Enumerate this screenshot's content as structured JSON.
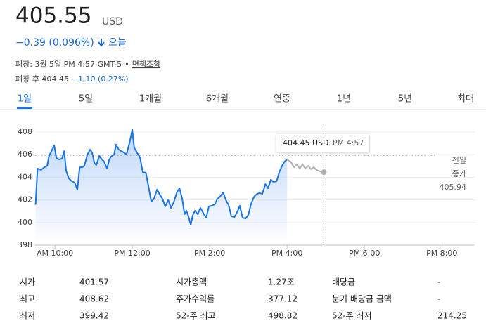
{
  "header": {
    "price": "405.55",
    "currency": "USD",
    "change": "−0.39 (0.096%)",
    "period": "오늘",
    "close_info": "폐장: 3월 5일 PM 4:57 GMT-5",
    "separator": "•",
    "disclaimer": "면책조항",
    "after_hours_label": "폐장 후 404.45",
    "after_hours_change": "−1.10 (0.27%)"
  },
  "tabs": {
    "items": [
      "1일",
      "5일",
      "1개월",
      "6개월",
      "연중",
      "1년",
      "5년",
      "최대"
    ],
    "selected": 0
  },
  "chart_data": {
    "type": "line",
    "xlim": [
      9.49,
      20.85
    ],
    "ylim": [
      398,
      408
    ],
    "xticks": [
      {
        "value": 10,
        "label": "AM 10:00"
      },
      {
        "value": 12,
        "label": "PM 12:00"
      },
      {
        "value": 14,
        "label": "PM 2:00"
      },
      {
        "value": 16,
        "label": "PM 4:00"
      },
      {
        "value": 18,
        "label": "PM 6:00"
      },
      {
        "value": 20,
        "label": "PM 8:00"
      }
    ],
    "yticks": [
      398,
      400,
      402,
      404,
      406,
      408
    ],
    "grid": true,
    "series": [
      {
        "color": "#1a73e8",
        "area": true,
        "x": [
          9.5,
          9.55,
          9.64,
          9.73,
          9.8,
          9.85,
          9.93,
          9.98,
          10.04,
          10.11,
          10.18,
          10.24,
          10.29,
          10.36,
          10.44,
          10.51,
          10.58,
          10.64,
          10.71,
          10.76,
          10.84,
          10.91,
          10.96,
          11.02,
          11.07,
          11.15,
          11.2,
          11.27,
          11.35,
          11.4,
          11.45,
          11.53,
          11.58,
          11.65,
          11.71,
          11.78,
          11.85,
          11.93,
          12.0,
          12.05,
          12.13,
          12.2,
          12.27,
          12.35,
          12.42,
          12.49,
          12.56,
          12.64,
          12.71,
          12.78,
          12.85,
          12.93,
          13.0,
          13.07,
          13.15,
          13.22,
          13.29,
          13.35,
          13.4,
          13.45,
          13.51,
          13.56,
          13.62,
          13.69,
          13.76,
          13.84,
          13.91,
          13.98,
          14.05,
          14.13,
          14.2,
          14.27,
          14.35,
          14.42,
          14.49,
          14.56,
          14.64,
          14.71,
          14.78,
          14.85,
          14.93,
          15.0,
          15.07,
          15.15,
          15.22,
          15.29,
          15.36,
          15.44,
          15.51,
          15.58,
          15.65,
          15.73,
          15.8,
          15.87,
          15.95,
          16.0
        ],
        "values": [
          401.57,
          404.77,
          404.65,
          404.89,
          405.02,
          405.89,
          406.45,
          406.82,
          405.7,
          405.58,
          405.64,
          406.32,
          404.58,
          403.9,
          403.65,
          403.53,
          402.91,
          404.89,
          404.89,
          405.02,
          406.01,
          406.45,
          406.2,
          405.27,
          405.08,
          405.89,
          405.64,
          405.39,
          404.77,
          405.52,
          405.83,
          406.01,
          406.88,
          406.45,
          406.32,
          406.2,
          406.01,
          407.07,
          408.19,
          406.63,
          406.14,
          405.76,
          404.46,
          404.4,
          403.16,
          401.85,
          402.1,
          402.91,
          402.47,
          402.1,
          401.42,
          401.98,
          401.29,
          401.79,
          402.66,
          403.03,
          402.1,
          400.73,
          401.04,
          400.55,
          399.8,
          400.61,
          401.04,
          400.73,
          401.29,
          400.8,
          400.42,
          401.42,
          401.48,
          401.6,
          402.1,
          402.29,
          402.66,
          401.98,
          401.54,
          400.55,
          400.48,
          400.92,
          401.48,
          400.42,
          400.36,
          400.67,
          401.66,
          402.29,
          402.53,
          402.6,
          402.53,
          403.4,
          403.03,
          403.78,
          403.59,
          403.65,
          404.46,
          405.02,
          405.45,
          405.55
        ]
      },
      {
        "color": "#b0b0b0",
        "area": false,
        "end_dot": true,
        "x": [
          16.0,
          16.09,
          16.18,
          16.25,
          16.33,
          16.4,
          16.47,
          16.55,
          16.62,
          16.69,
          16.76,
          16.85,
          16.95
        ],
        "values": [
          405.55,
          405.39,
          404.89,
          405.14,
          404.77,
          405.14,
          404.77,
          405.02,
          404.71,
          404.89,
          404.65,
          404.52,
          404.45
        ]
      }
    ],
    "reference_line": {
      "value": 405.94,
      "label_lines": [
        "전일",
        "종가"
      ]
    },
    "tooltip": {
      "x": 16.95,
      "value": 404.45,
      "label": "404.45 USD",
      "time": "PM 4:57"
    }
  },
  "stats": {
    "rows": [
      [
        [
          "시가",
          "401.57"
        ],
        [
          "시가총액",
          "1.27조"
        ],
        [
          "배당금",
          "-"
        ]
      ],
      [
        [
          "최고",
          "408.62"
        ],
        [
          "주가수익률",
          "377.12"
        ],
        [
          "분기 배당금 금액",
          "-"
        ]
      ],
      [
        [
          "최저",
          "399.42"
        ],
        [
          "52-주 최고",
          "498.82"
        ],
        [
          "52-주 최저",
          "214.25"
        ]
      ]
    ]
  }
}
